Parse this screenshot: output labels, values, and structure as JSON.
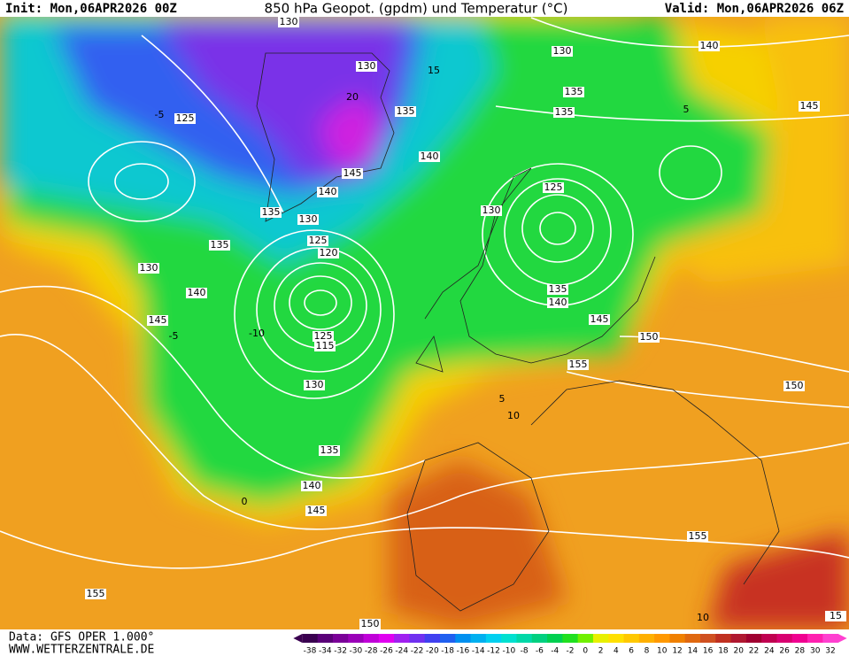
{
  "header": {
    "init": "Init: Mon,06APR2026 00Z",
    "title": "850 hPa Geopot. (gpdm) und Temperatur (°C)",
    "valid": "Valid: Mon,06APR2026 06Z"
  },
  "footer": {
    "data": "Data: GFS OPER 1.000°",
    "website": "WWW.WETTERZENTRALE.DE"
  },
  "colorbar": {
    "labels": [
      -38,
      -34,
      -32,
      -30,
      -28,
      -26,
      -24,
      -22,
      -20,
      -18,
      -16,
      -14,
      -12,
      -10,
      -8,
      -6,
      -4,
      -2,
      0,
      2,
      4,
      6,
      8,
      10,
      12,
      14,
      16,
      18,
      20,
      22,
      24,
      26,
      28,
      30,
      32
    ],
    "colors": [
      "#3a0050",
      "#5a0078",
      "#7a0098",
      "#9a00b8",
      "#c000d8",
      "#e000f0",
      "#a020f0",
      "#7030f0",
      "#4040f0",
      "#2060f0",
      "#0090f0",
      "#00b0f0",
      "#00d0f0",
      "#00e0d0",
      "#00d8a8",
      "#00d080",
      "#00d050",
      "#20e020",
      "#70f000",
      "#e8f000",
      "#ffe000",
      "#ffc800",
      "#ffb000",
      "#ff9800",
      "#f08000",
      "#e06810",
      "#d05020",
      "#c03020",
      "#b01830",
      "#a00030",
      "#c00050",
      "#d80070",
      "#f00090",
      "#ff20b0",
      "#ff40d0"
    ]
  },
  "map": {
    "isobar_labels": [
      130,
      130,
      140,
      130,
      135,
      145,
      125,
      135,
      135,
      140,
      145,
      140,
      125,
      135,
      130,
      130,
      125,
      120,
      135,
      130,
      140,
      135,
      140,
      145,
      145,
      150,
      125,
      115,
      155,
      150,
      130,
      135,
      140,
      145,
      155,
      155,
      150,
      15
    ],
    "temperature_labels": [
      -5,
      -10,
      5,
      10,
      0,
      5,
      10,
      20,
      -5,
      15
    ]
  }
}
